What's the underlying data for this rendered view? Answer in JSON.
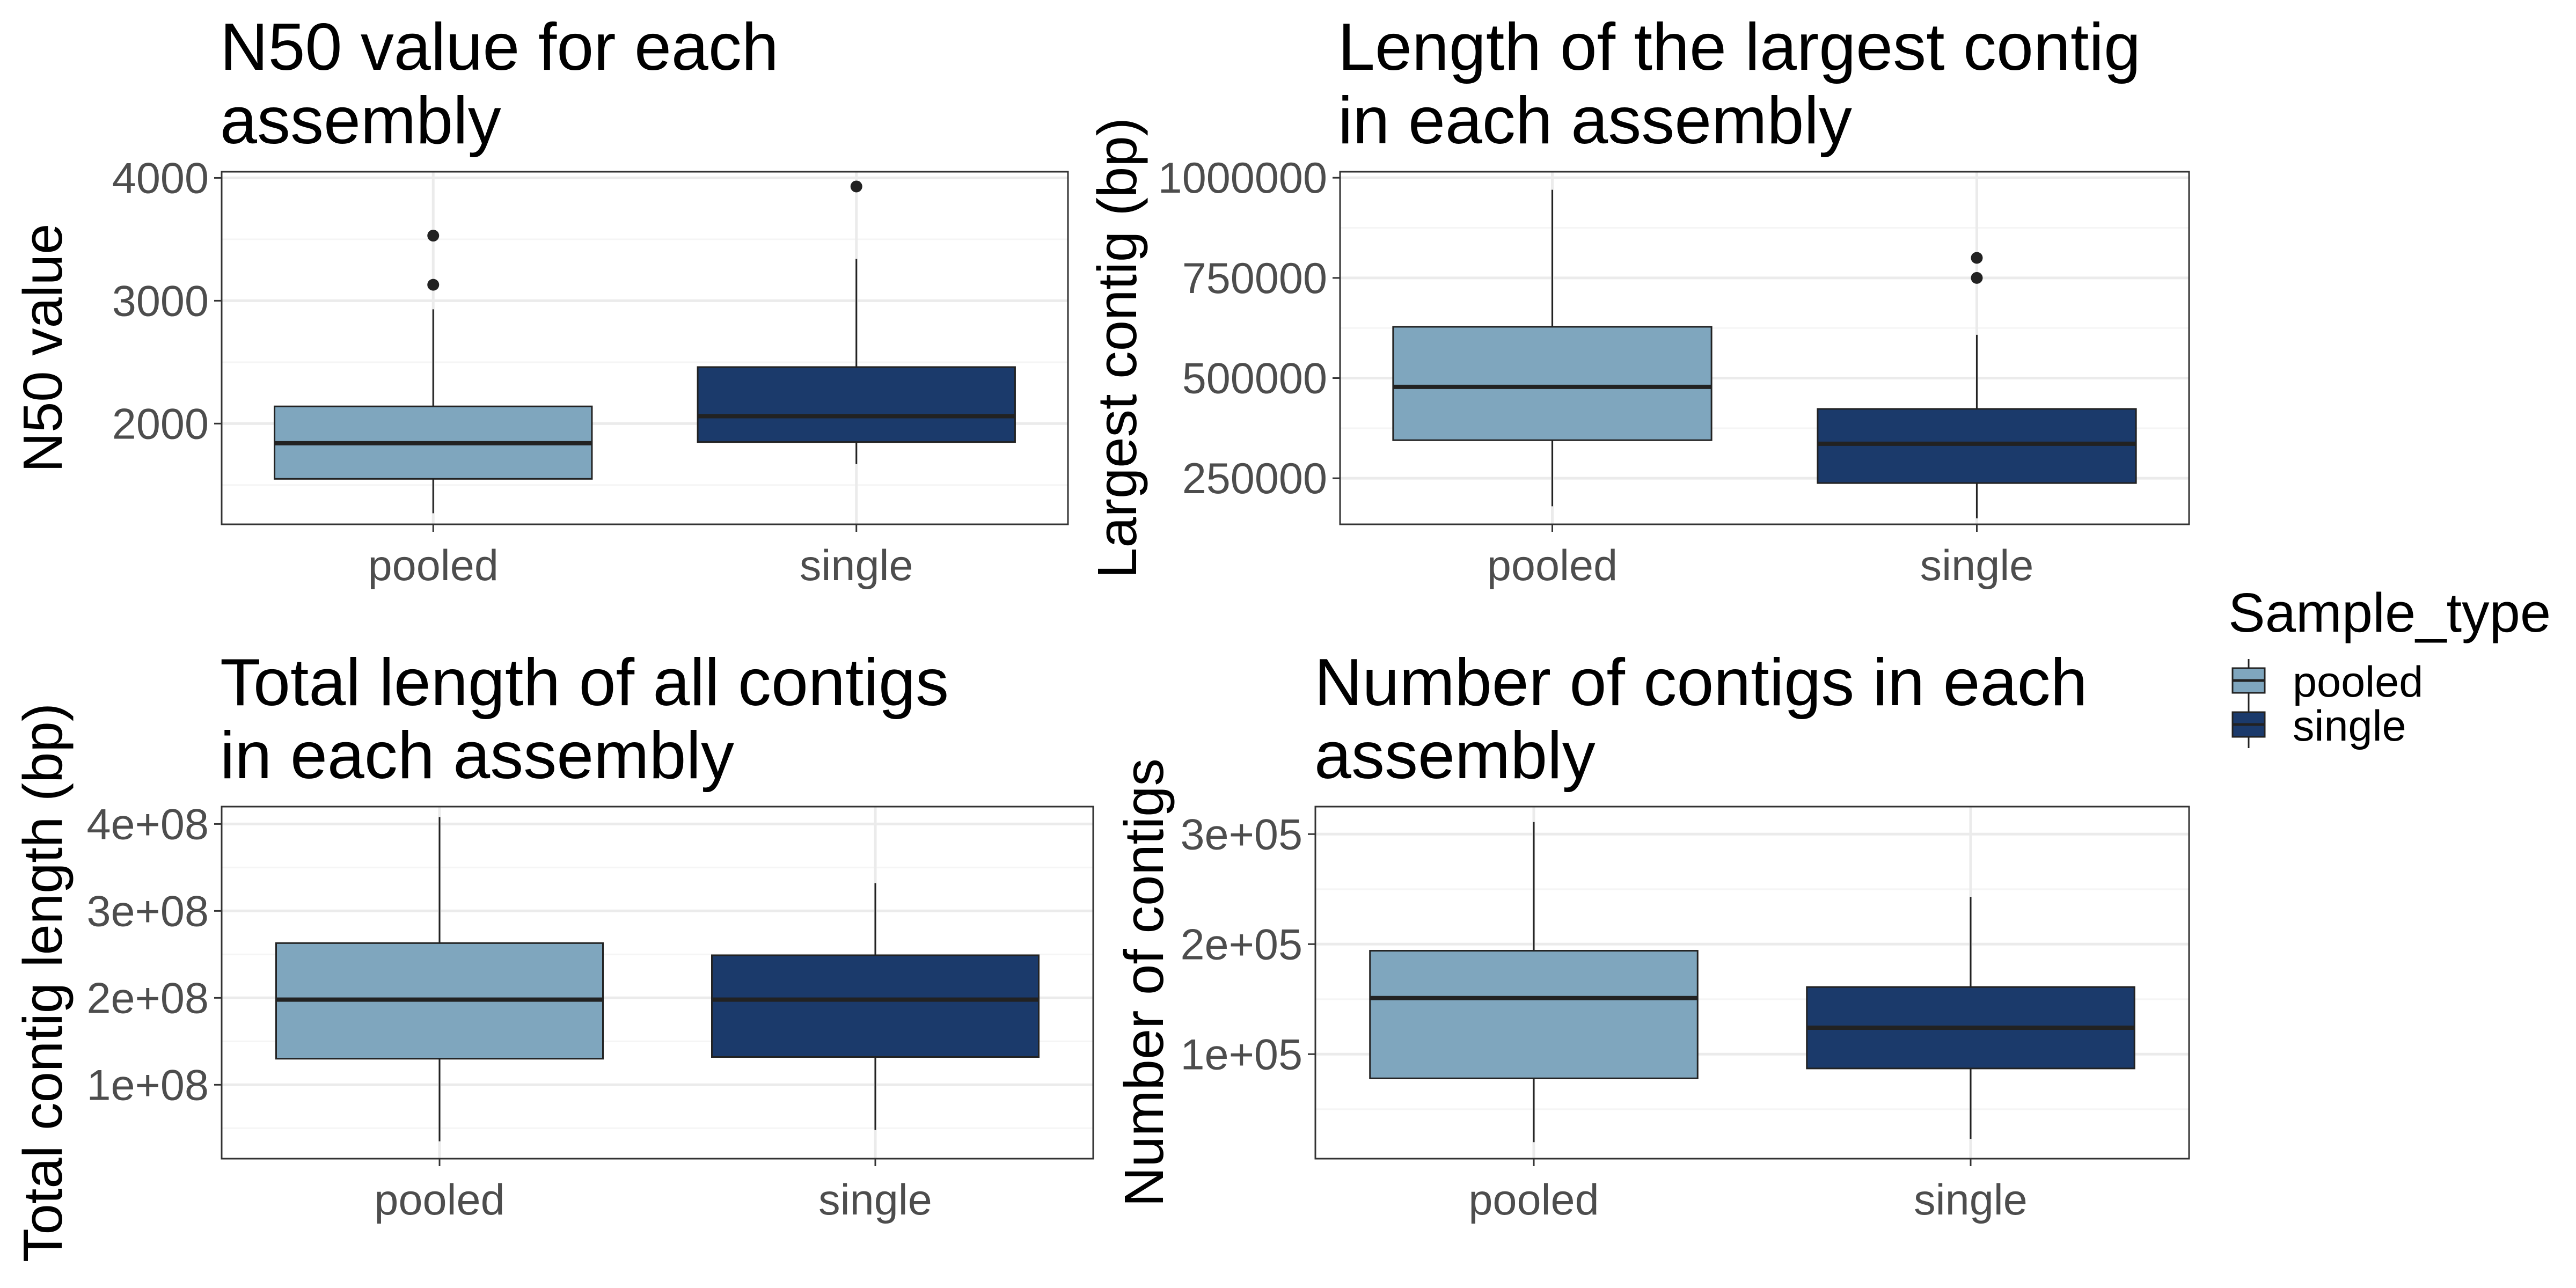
{
  "colors": {
    "pooled": "#7fa6be",
    "single": "#1b3a6b",
    "outline": "#222222",
    "grid_major": "#ebebeb",
    "grid_minor": "#f5f5f5",
    "panel_border": "#333333"
  },
  "legend": {
    "title": "Sample_type",
    "position": "right",
    "items": [
      {
        "label": "pooled",
        "color": "#7fa6be"
      },
      {
        "label": "single",
        "color": "#1b3a6b"
      }
    ]
  },
  "chart_data": [
    {
      "type": "box",
      "title": [
        "N50 value for each",
        "assembly"
      ],
      "ylabel": "N50 value",
      "xlabel": "",
      "categories": [
        "pooled",
        "single"
      ],
      "ylim": [
        1180,
        4050
      ],
      "yticks": [
        2000,
        3000,
        4000
      ],
      "yticklabels": [
        "2000",
        "3000",
        "4000"
      ],
      "yminor": [
        1500,
        2500,
        3500
      ],
      "boxes": [
        {
          "category": "pooled",
          "whisker_low": 1270,
          "q1": 1550,
          "median": 1840,
          "q3": 2140,
          "whisker_high": 2930,
          "outliers": [
            3130,
            3530
          ]
        },
        {
          "category": "single",
          "whisker_low": 1670,
          "q1": 1850,
          "median": 2060,
          "q3": 2460,
          "whisker_high": 3340,
          "outliers": [
            3930
          ]
        }
      ]
    },
    {
      "type": "box",
      "title": [
        "Length of the largest contig",
        "in each assembly"
      ],
      "ylabel": "Largest contig (bp)",
      "xlabel": "",
      "categories": [
        "pooled",
        "single"
      ],
      "ylim": [
        135000,
        1015000
      ],
      "yticks": [
        250000,
        500000,
        750000,
        1000000
      ],
      "yticklabels": [
        "250000",
        "500000",
        "750000",
        "1000000"
      ],
      "yminor": [
        375000,
        625000,
        875000
      ],
      "boxes": [
        {
          "category": "pooled",
          "whisker_low": 180000,
          "q1": 345000,
          "median": 478000,
          "q3": 628000,
          "whisker_high": 970000,
          "outliers": []
        },
        {
          "category": "single",
          "whisker_low": 150000,
          "q1": 238000,
          "median": 336000,
          "q3": 423000,
          "whisker_high": 608000,
          "outliers": [
            750000,
            800000
          ]
        }
      ]
    },
    {
      "type": "box",
      "title": [
        "Total length of all contigs",
        "in each assembly"
      ],
      "ylabel": "Total contig length (bp)",
      "xlabel": "",
      "categories": [
        "pooled",
        "single"
      ],
      "ylim": [
        15000000,
        420000000
      ],
      "yticks": [
        100000000,
        200000000,
        300000000,
        400000000
      ],
      "yticklabels": [
        "1e+08",
        "2e+08",
        "3e+08",
        "4e+08"
      ],
      "yminor": [
        50000000,
        150000000,
        250000000,
        350000000
      ],
      "boxes": [
        {
          "category": "pooled",
          "whisker_low": 35000000,
          "q1": 130000000,
          "median": 198000000,
          "q3": 263000000,
          "whisker_high": 408000000,
          "outliers": []
        },
        {
          "category": "single",
          "whisker_low": 48000000,
          "q1": 132000000,
          "median": 198000000,
          "q3": 249000000,
          "whisker_high": 332000000,
          "outliers": []
        }
      ]
    },
    {
      "type": "box",
      "title": [
        "Number of contigs in each",
        "assembly"
      ],
      "ylabel": "Number of contigs",
      "xlabel": "",
      "categories": [
        "pooled",
        "single"
      ],
      "ylim": [
        5000,
        325000
      ],
      "yticks": [
        100000,
        200000,
        300000
      ],
      "yticklabels": [
        "1e+05",
        "2e+05",
        "3e+05"
      ],
      "yminor": [
        50000,
        150000,
        250000
      ],
      "boxes": [
        {
          "category": "pooled",
          "whisker_low": 20000,
          "q1": 78000,
          "median": 151000,
          "q3": 194000,
          "whisker_high": 311000,
          "outliers": []
        },
        {
          "category": "single",
          "whisker_low": 23000,
          "q1": 87000,
          "median": 124000,
          "q3": 161000,
          "whisker_high": 243000,
          "outliers": []
        }
      ]
    }
  ]
}
